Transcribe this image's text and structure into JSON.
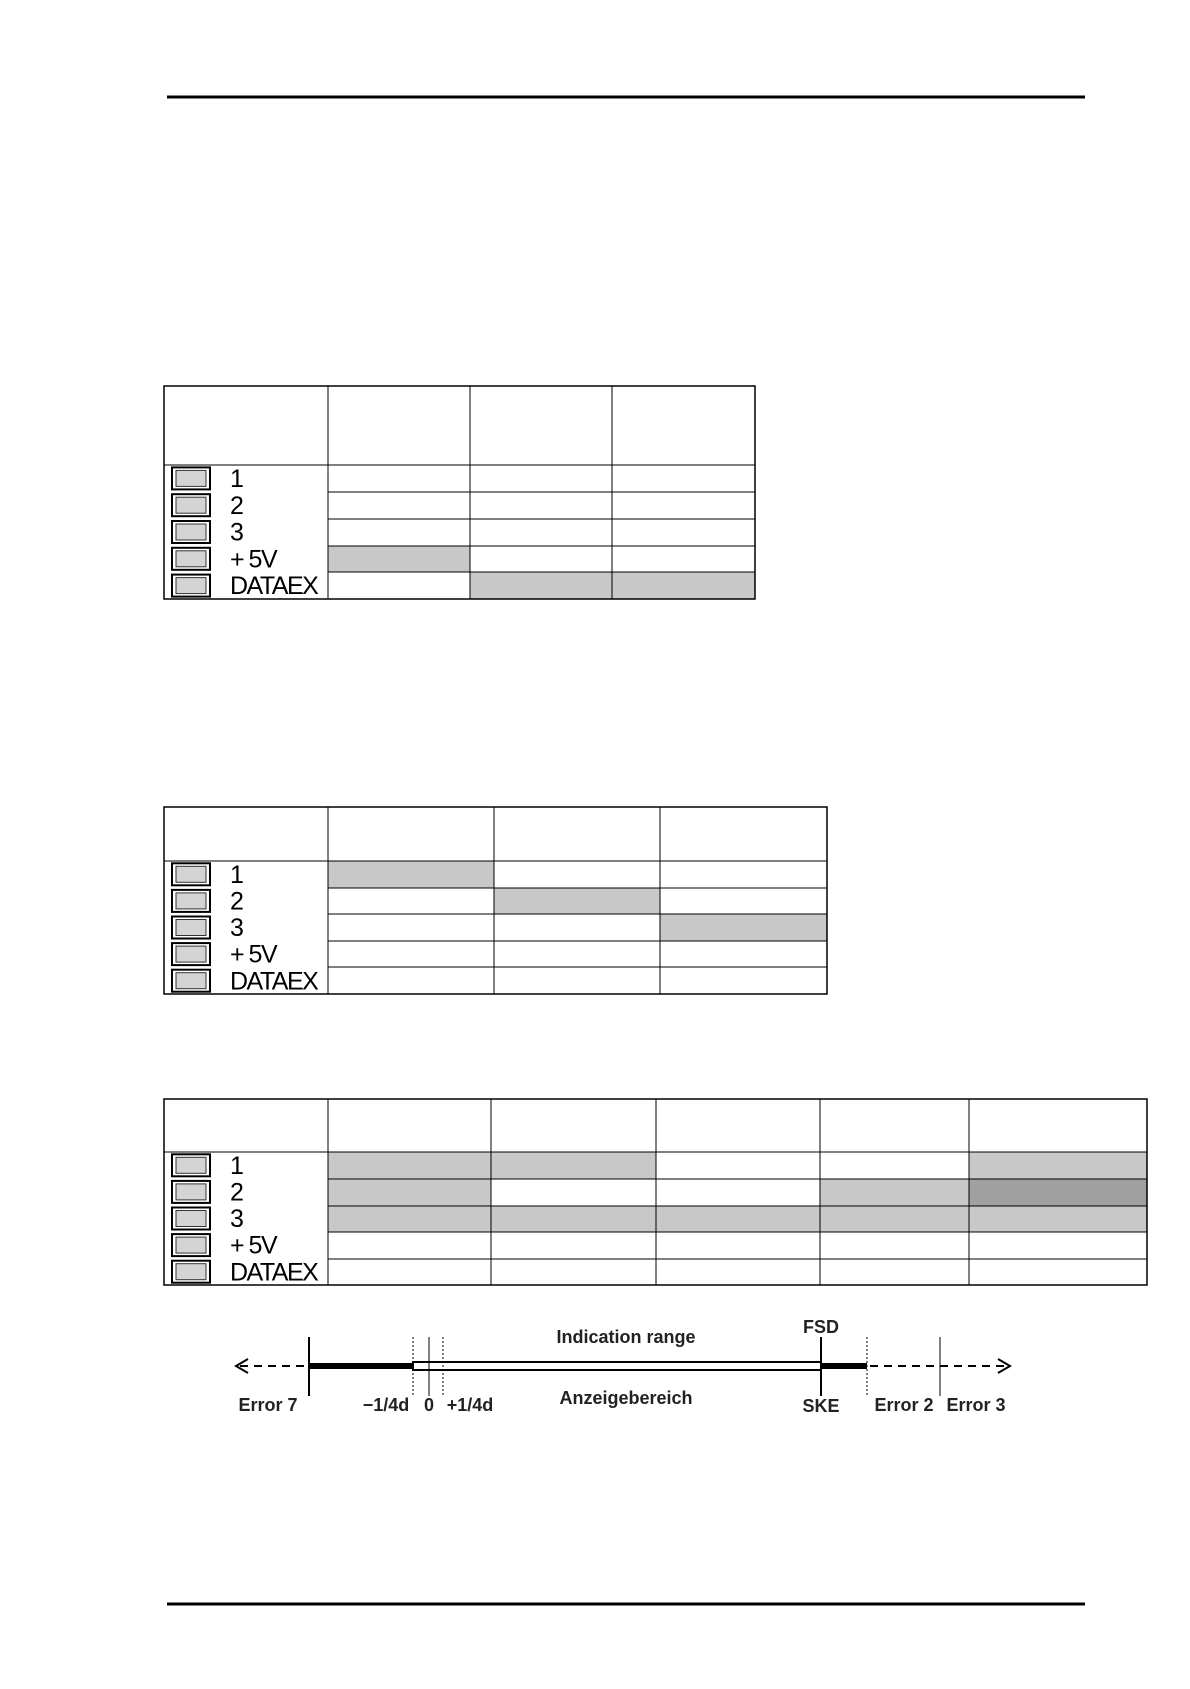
{
  "tables": [
    {
      "pins": [
        "1",
        "2",
        "3",
        "+ 5V",
        "DATAEX"
      ],
      "columns": [
        164,
        328,
        470,
        612,
        755
      ],
      "rows": [
        386,
        465,
        492,
        519,
        546,
        572,
        599
      ],
      "cell_colors": [
        [
          "#ffffff",
          "#ffffff",
          "#ffffff"
        ],
        [
          "#ffffff",
          "#ffffff",
          "#ffffff"
        ],
        [
          "#ffffff",
          "#ffffff",
          "#ffffff"
        ],
        [
          "#c8c8c8",
          "#ffffff",
          "#ffffff"
        ],
        [
          "#ffffff",
          "#c8c8c8",
          "#c8c8c8"
        ]
      ]
    },
    {
      "pins": [
        "1",
        "2",
        "3",
        "+ 5V",
        "DATAEX"
      ],
      "columns": [
        164,
        328,
        494,
        660,
        827
      ],
      "rows": [
        807,
        861,
        888,
        914,
        941,
        967,
        994
      ],
      "cell_colors": [
        [
          "#c8c8c8",
          "#ffffff",
          "#ffffff"
        ],
        [
          "#ffffff",
          "#c8c8c8",
          "#ffffff"
        ],
        [
          "#ffffff",
          "#ffffff",
          "#c8c8c8"
        ],
        [
          "#ffffff",
          "#ffffff",
          "#ffffff"
        ],
        [
          "#ffffff",
          "#ffffff",
          "#ffffff"
        ]
      ]
    },
    {
      "pins": [
        "1",
        "2",
        "3",
        "+ 5V",
        "DATAEX"
      ],
      "columns": [
        164,
        328,
        491,
        656,
        820,
        969,
        1147
      ],
      "rows": [
        1099,
        1152,
        1179,
        1206,
        1232,
        1259,
        1285
      ],
      "cell_colors": [
        [
          "#c8c8c8",
          "#c8c8c8",
          "#ffffff",
          "#ffffff",
          "#c8c8c8"
        ],
        [
          "#c8c8c8",
          "#ffffff",
          "#ffffff",
          "#c8c8c8",
          "#a0a0a0"
        ],
        [
          "#c8c8c8",
          "#c8c8c8",
          "#c8c8c8",
          "#c8c8c8",
          "#c8c8c8"
        ],
        [
          "#ffffff",
          "#ffffff",
          "#ffffff",
          "#ffffff",
          "#ffffff"
        ],
        [
          "#ffffff",
          "#ffffff",
          "#ffffff",
          "#ffffff",
          "#ffffff"
        ]
      ]
    }
  ],
  "diagram": {
    "indication_range": "Indication range",
    "anzeigebereich": "Anzeigebereich",
    "fsd": "FSD",
    "ske": "SKE",
    "error_7": "Error 7",
    "minus_quarter_d": "−1/4d",
    "zero": "0",
    "plus_quarter_d": "+1/4d",
    "error_2": "Error 2",
    "error_3": "Error 3"
  }
}
